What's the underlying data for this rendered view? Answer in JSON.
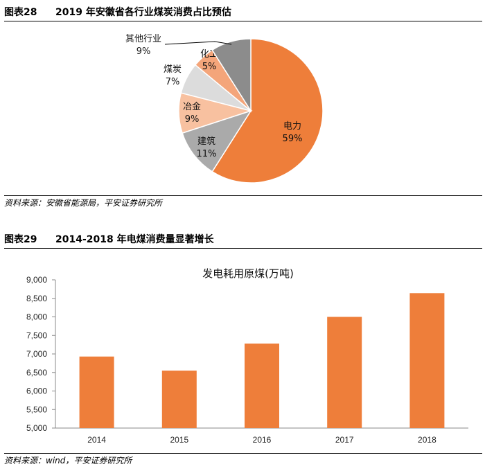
{
  "figure1": {
    "number": "图表28",
    "title": "2019 年安徽省各行业煤炭消费占比预估",
    "source": "资料来源：安徽省能源局，平安证券研究所"
  },
  "figure2": {
    "number": "图表29",
    "title": "2014-2018 年电煤消费量显著增长",
    "source": "资料来源：wind，平安证券研究所"
  },
  "chart_data": [
    {
      "type": "pie",
      "slices": [
        {
          "label": "电力",
          "value": 59,
          "value_label": "59%",
          "color": "#EE7E3A"
        },
        {
          "label": "建筑",
          "value": 11,
          "value_label": "11%",
          "color": "#AAAAAA"
        },
        {
          "label": "冶金",
          "value": 9,
          "value_label": "9%",
          "color": "#F8C1A0"
        },
        {
          "label": "煤炭",
          "value": 7,
          "value_label": "7%",
          "color": "#DCDCDC"
        },
        {
          "label": "化工",
          "value": 5,
          "value_label": "5%",
          "color": "#F4A57A"
        },
        {
          "label": "其他行业",
          "value": 9,
          "value_label": "9%",
          "color": "#8C8C8C"
        }
      ]
    },
    {
      "type": "bar",
      "title": "发电耗用原煤(万吨)",
      "categories": [
        "2014",
        "2015",
        "2016",
        "2017",
        "2018"
      ],
      "values": [
        6930,
        6550,
        7280,
        8000,
        8640
      ],
      "ylim": [
        5000,
        9000
      ],
      "yticks": [
        5000,
        5500,
        6000,
        6500,
        7000,
        7500,
        8000,
        8500,
        9000
      ],
      "ytick_labels": [
        "5,000",
        "5,500",
        "6,000",
        "6,500",
        "7,000",
        "7,500",
        "8,000",
        "8,500",
        "9,000"
      ],
      "color": "#EE7E3A",
      "grid": false
    }
  ]
}
